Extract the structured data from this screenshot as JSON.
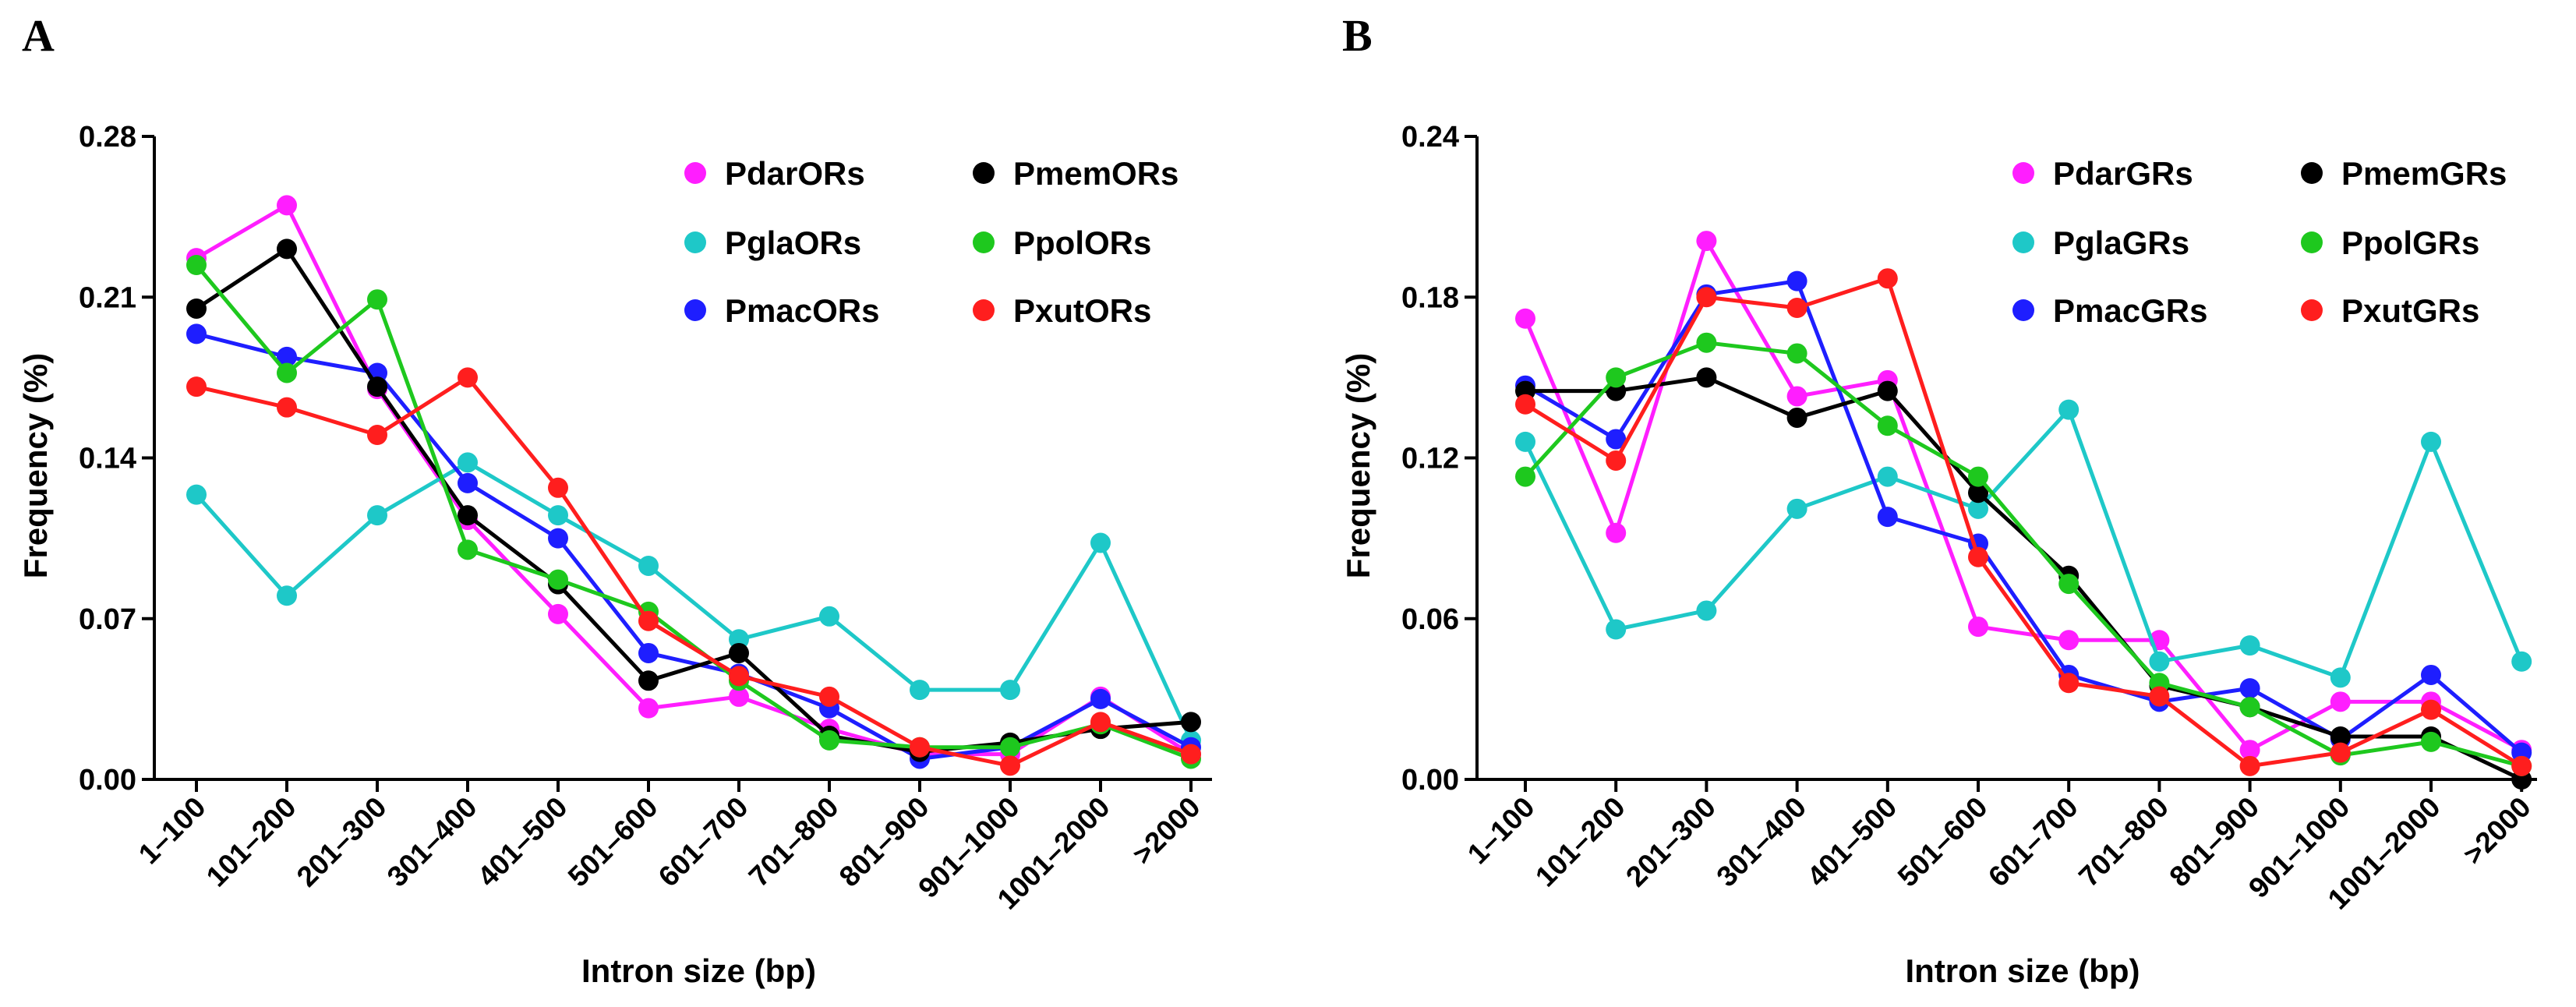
{
  "figure": {
    "panel_letters": [
      "A",
      "B"
    ]
  },
  "colors": {
    "magenta": "#ff1eff",
    "cyan": "#1ec8c8",
    "blue": "#1e1eff",
    "black": "#000000",
    "green": "#1ec81e",
    "red": "#ff1e1e"
  },
  "chart_data": [
    {
      "type": "line",
      "panel": "A",
      "title": "",
      "xlabel": "Intron size (bp)",
      "ylabel": "Frequency (%)",
      "ylim": [
        0,
        0.28
      ],
      "yticks": [
        "0.00",
        "0.07",
        "0.14",
        "0.21",
        "0.28"
      ],
      "categories": [
        "1–100",
        "101–200",
        "201–300",
        "301–400",
        "401–500",
        "501–600",
        "601–700",
        "701–800",
        "801–900",
        "901–1000",
        "1001–2000",
        ">2000"
      ],
      "legend_position": "top-right",
      "series": [
        {
          "name": "PdarORs",
          "color": "#ff1eff",
          "values": [
            0.227,
            0.25,
            0.17,
            0.113,
            0.072,
            0.031,
            0.036,
            0.022,
            0.011,
            0.011,
            0.036,
            0.011
          ]
        },
        {
          "name": "PglaORs",
          "color": "#1ec8c8",
          "values": [
            0.124,
            0.08,
            0.115,
            0.138,
            0.115,
            0.093,
            0.061,
            0.071,
            0.039,
            0.039,
            0.103,
            0.017
          ]
        },
        {
          "name": "PmacORs",
          "color": "#1e1eff",
          "values": [
            0.194,
            0.184,
            0.177,
            0.129,
            0.105,
            0.055,
            0.046,
            0.031,
            0.009,
            0.014,
            0.035,
            0.014
          ]
        },
        {
          "name": "PmemORs",
          "color": "#000000",
          "values": [
            0.205,
            0.231,
            0.171,
            0.115,
            0.085,
            0.043,
            0.055,
            0.019,
            0.012,
            0.016,
            0.022,
            0.025
          ]
        },
        {
          "name": "PpolORs",
          "color": "#1ec81e",
          "values": [
            0.224,
            0.177,
            0.209,
            0.1,
            0.087,
            0.073,
            0.043,
            0.017,
            0.014,
            0.014,
            0.024,
            0.009
          ]
        },
        {
          "name": "PxutORs",
          "color": "#ff1e1e",
          "values": [
            0.171,
            0.162,
            0.15,
            0.175,
            0.127,
            0.069,
            0.045,
            0.036,
            0.014,
            0.006,
            0.025,
            0.011
          ]
        }
      ]
    },
    {
      "type": "line",
      "panel": "B",
      "title": "",
      "xlabel": "Intron size (bp)",
      "ylabel": "Frequency (%)",
      "ylim": [
        0,
        0.24
      ],
      "yticks": [
        "0.00",
        "0.06",
        "0.12",
        "0.18",
        "0.24"
      ],
      "categories": [
        "1–100",
        "101–200",
        "201–300",
        "301–400",
        "401–500",
        "501–600",
        "601–700",
        "701–800",
        "801–900",
        "901–1000",
        "1001–2000",
        ">2000"
      ],
      "legend_position": "top-right",
      "series": [
        {
          "name": "PdarGRs",
          "color": "#ff1eff",
          "values": [
            0.172,
            0.092,
            0.201,
            0.143,
            0.149,
            0.057,
            0.052,
            0.052,
            0.011,
            0.029,
            0.029,
            0.011
          ]
        },
        {
          "name": "PglaGRs",
          "color": "#1ec8c8",
          "values": [
            0.126,
            0.056,
            0.063,
            0.101,
            0.113,
            0.101,
            0.138,
            0.044,
            0.05,
            0.038,
            0.126,
            0.044
          ]
        },
        {
          "name": "PmacGRs",
          "color": "#1e1eff",
          "values": [
            0.147,
            0.127,
            0.181,
            0.186,
            0.098,
            0.088,
            0.039,
            0.029,
            0.034,
            0.015,
            0.039,
            0.01
          ]
        },
        {
          "name": "PmemGRs",
          "color": "#000000",
          "values": [
            0.145,
            0.145,
            0.15,
            0.135,
            0.145,
            0.107,
            0.076,
            0.035,
            0.027,
            0.016,
            0.016,
            0.0
          ]
        },
        {
          "name": "PpolGRs",
          "color": "#1ec81e",
          "values": [
            0.113,
            0.15,
            0.163,
            0.159,
            0.132,
            0.113,
            0.073,
            0.036,
            0.027,
            0.009,
            0.014,
            0.005
          ]
        },
        {
          "name": "PxutGRs",
          "color": "#ff1e1e",
          "values": [
            0.14,
            0.119,
            0.18,
            0.176,
            0.187,
            0.083,
            0.036,
            0.031,
            0.005,
            0.01,
            0.026,
            0.005
          ]
        }
      ]
    }
  ]
}
